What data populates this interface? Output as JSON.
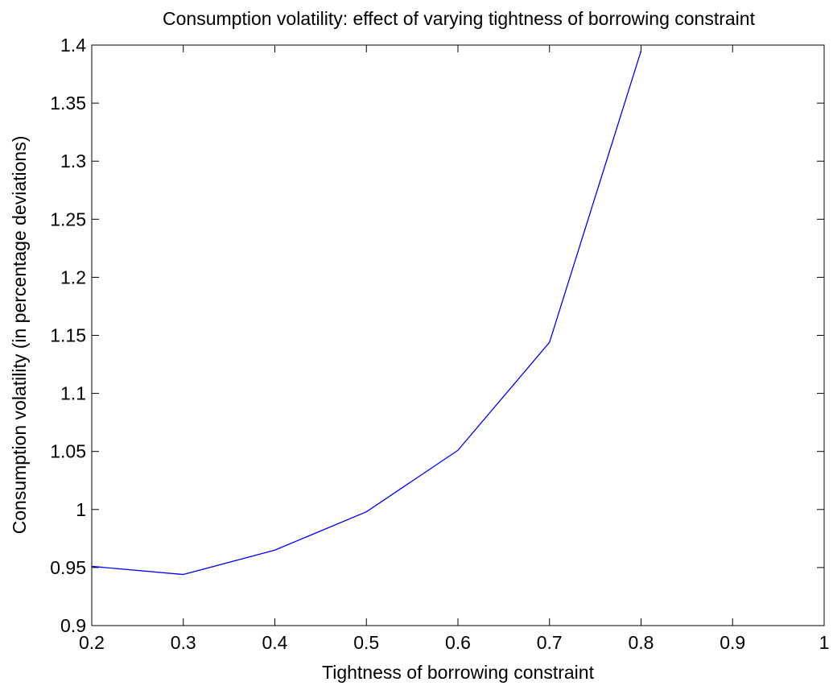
{
  "chart_data": {
    "type": "line",
    "title": "Consumption volatility: effect of varying tightness of borrowing constraint",
    "xlabel": "Tightness of borrowing constraint",
    "ylabel": "Consumption volatility (in percentage deviations)",
    "xlim": [
      0.2,
      1.0
    ],
    "ylim": [
      0.9,
      1.4
    ],
    "xticks": [
      0.2,
      0.3,
      0.4,
      0.5,
      0.6,
      0.7,
      0.8,
      0.9,
      1.0
    ],
    "xtick_labels": [
      "0.2",
      "0.3",
      "0.4",
      "0.5",
      "0.6",
      "0.7",
      "0.8",
      "0.9",
      "1"
    ],
    "yticks": [
      0.9,
      0.95,
      1.0,
      1.05,
      1.1,
      1.15,
      1.2,
      1.25,
      1.3,
      1.35,
      1.4
    ],
    "ytick_labels": [
      "0.9",
      "0.95",
      "1",
      "1.05",
      "1.1",
      "1.15",
      "1.2",
      "1.25",
      "1.3",
      "1.35",
      "1.4"
    ],
    "grid": false,
    "series": [
      {
        "color": "#0000ff",
        "x": [
          0.2,
          0.3,
          0.4,
          0.5,
          0.6,
          0.7,
          0.8
        ],
        "y": [
          0.951,
          0.944,
          0.965,
          0.998,
          1.051,
          1.144,
          1.395
        ]
      }
    ]
  }
}
